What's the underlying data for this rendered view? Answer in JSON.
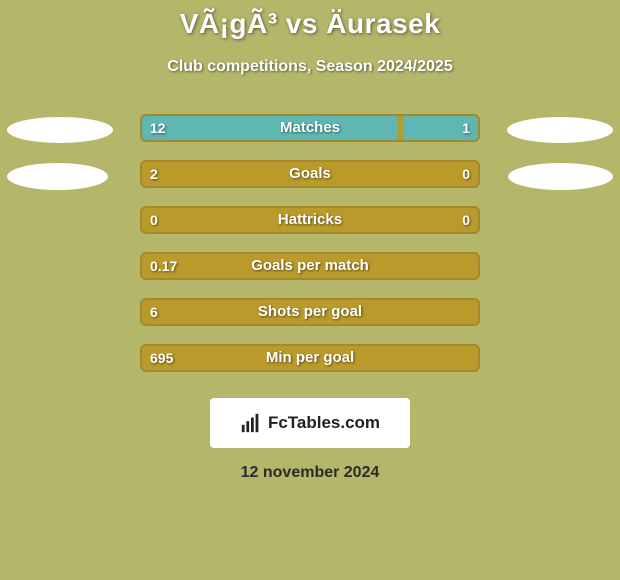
{
  "background_color": "#b4b66a",
  "title": "VÃ¡gÃ³ vs Äurasek",
  "title_color": "#ffffff",
  "title_shadow": "1px 1px 3px rgba(0,0,0,0.5)",
  "subtitle": "Club competitions, Season 2024/2025",
  "subtitle_color": "#ffffff",
  "subtitle_shadow": "1px 1px 2px rgba(0,0,0,0.5)",
  "player_left_ellipse_color": "#ffffff",
  "player_right_ellipse_color": "#ffffff",
  "ellipses": [
    {
      "row_index": 0,
      "left_w": 106,
      "left_h": 26,
      "right_w": 106,
      "right_h": 26
    },
    {
      "row_index": 1,
      "left_w": 101,
      "left_h": 27,
      "right_w": 105,
      "right_h": 27
    }
  ],
  "bar_track_border_color": "#a08a2c",
  "left_bar_color": "#5fb7b3",
  "right_bar_color": "#5fb7b3",
  "default_bar_bg": "#b99a2a",
  "rows": [
    {
      "label": "Matches",
      "left_val": "12",
      "right_val": "1",
      "left_pct": 76,
      "right_pct": 22
    },
    {
      "label": "Goals",
      "left_val": "2",
      "right_val": "0",
      "left_pct": 0,
      "right_pct": 0
    },
    {
      "label": "Hattricks",
      "left_val": "0",
      "right_val": "0",
      "left_pct": 0,
      "right_pct": 0
    },
    {
      "label": "Goals per match",
      "left_val": "0.17",
      "right_val": "",
      "left_pct": 0,
      "right_pct": 0
    },
    {
      "label": "Shots per goal",
      "left_val": "6",
      "right_val": "",
      "left_pct": 0,
      "right_pct": 0
    },
    {
      "label": "Min per goal",
      "left_val": "695",
      "right_val": "",
      "left_pct": 0,
      "right_pct": 0
    }
  ],
  "brand_text": "FcTables.com",
  "footer_date": "12 november 2024",
  "footer_color": "#2b2b2b"
}
